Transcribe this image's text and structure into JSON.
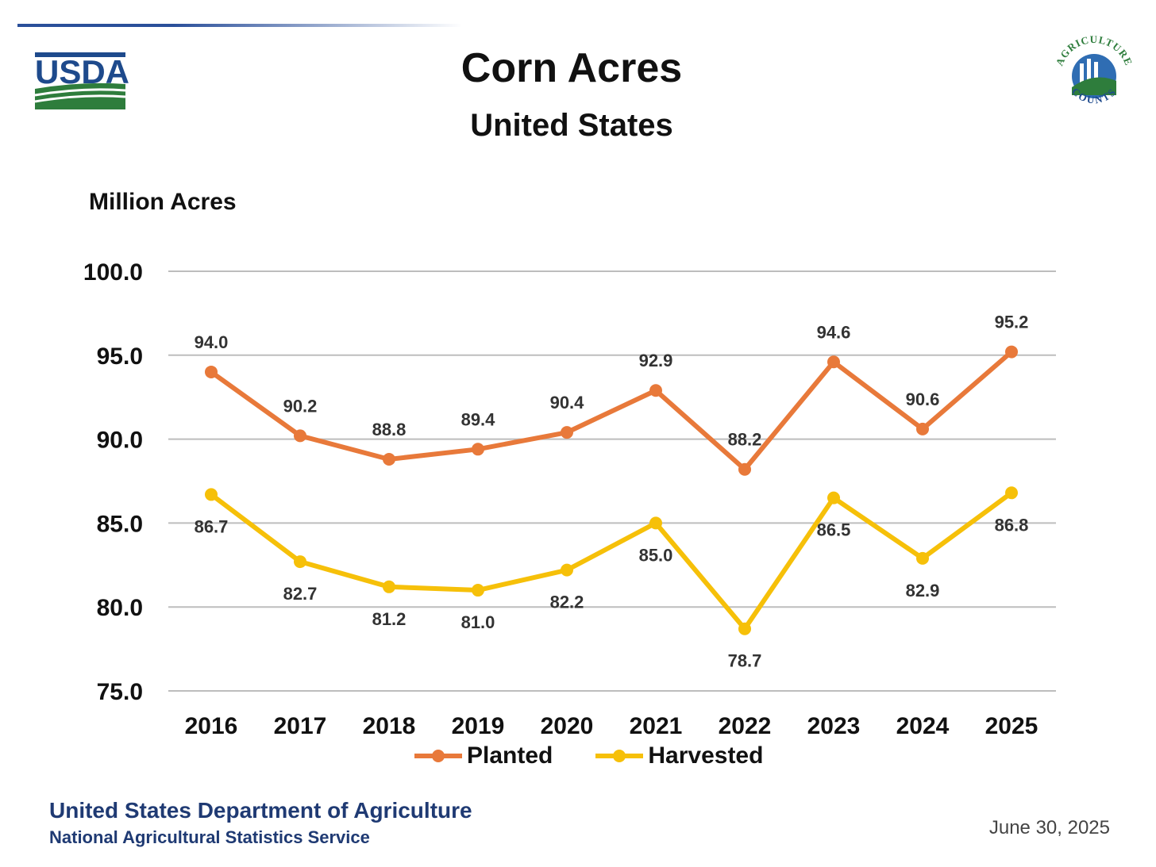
{
  "header": {
    "logo_left_text": "USDA",
    "logo_right_top": "AGRICULTURE",
    "logo_right_bottom": "COUNTS"
  },
  "chart_data": {
    "type": "line",
    "title": "Corn Acres",
    "subtitle": "United States",
    "ylabel": "Million Acres",
    "xlabel": "",
    "ylim": [
      75,
      100
    ],
    "yticks": [
      "75.0",
      "80.0",
      "85.0",
      "90.0",
      "95.0",
      "100.0"
    ],
    "categories": [
      "2016",
      "2017",
      "2018",
      "2019",
      "2020",
      "2021",
      "2022",
      "2023",
      "2024",
      "2025"
    ],
    "grid": true,
    "legend_position": "bottom",
    "series": [
      {
        "name": "Planted",
        "color": "#e8793a",
        "values": [
          94.0,
          90.2,
          88.8,
          89.4,
          90.4,
          92.9,
          88.2,
          94.6,
          90.6,
          95.2
        ],
        "labels": [
          "94.0",
          "90.2",
          "88.8",
          "89.4",
          "90.4",
          "92.9",
          "88.2",
          "94.6",
          "90.6",
          "95.2"
        ]
      },
      {
        "name": "Harvested",
        "color": "#f6c009",
        "values": [
          86.7,
          82.7,
          81.2,
          81.0,
          82.2,
          85.0,
          78.7,
          86.5,
          82.9,
          86.8
        ],
        "labels": [
          "86.7",
          "82.7",
          "81.2",
          "81.0",
          "82.2",
          "85.0",
          "78.7",
          "86.5",
          "82.9",
          "86.8"
        ]
      }
    ]
  },
  "footer": {
    "agency": "United States Department of Agriculture",
    "service": "National Agricultural Statistics Service",
    "date": "June 30, 2025"
  }
}
